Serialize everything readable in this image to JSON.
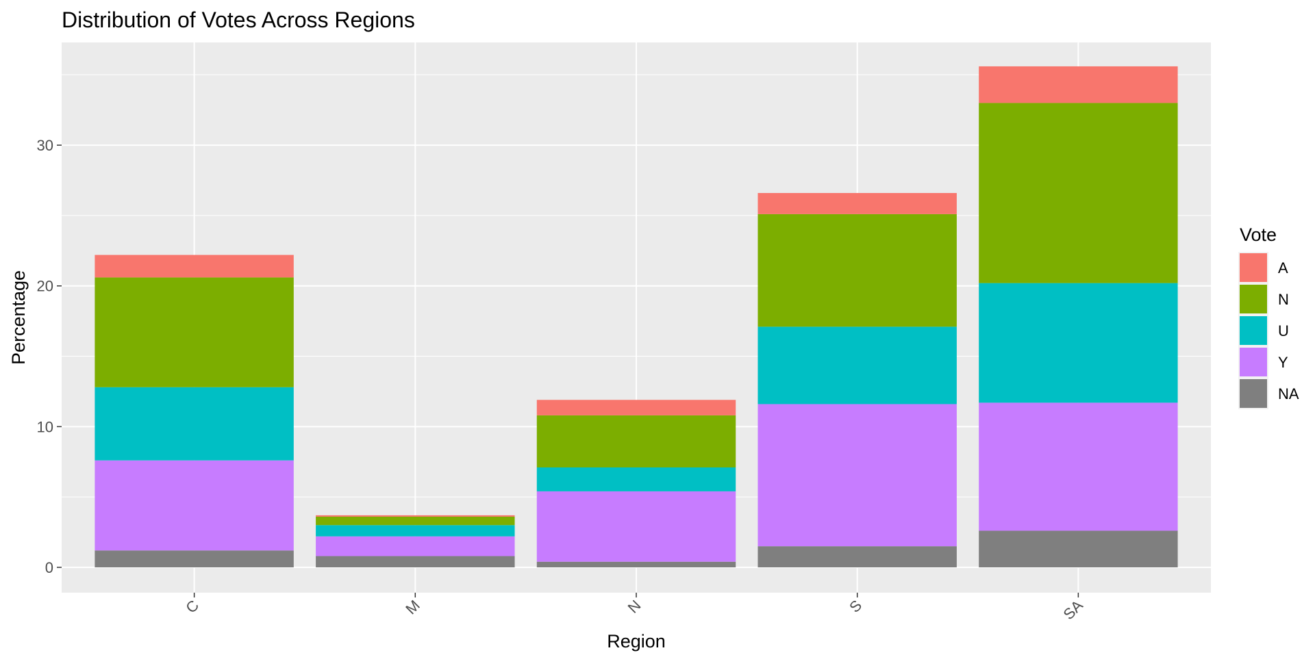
{
  "chart_data": {
    "type": "bar",
    "stacked": true,
    "title": "Distribution of Votes Across Regions",
    "xlabel": "Region",
    "ylabel": "Percentage",
    "categories": [
      "C",
      "M",
      "N",
      "S",
      "SA"
    ],
    "y_ticks": [
      0,
      10,
      20,
      30
    ],
    "ylim": [
      -1.8,
      37.3
    ],
    "grid": true,
    "legend": {
      "title": "Vote",
      "position": "right"
    },
    "series": [
      {
        "name": "NA",
        "color": "#7f7f7f",
        "values": [
          1.2,
          0.8,
          0.4,
          1.5,
          2.6
        ]
      },
      {
        "name": "Y",
        "color": "#c77cff",
        "values": [
          6.4,
          1.4,
          5.0,
          10.1,
          9.1
        ]
      },
      {
        "name": "U",
        "color": "#00bfc4",
        "values": [
          5.2,
          0.8,
          1.7,
          5.5,
          8.5
        ]
      },
      {
        "name": "N",
        "color": "#7cae00",
        "values": [
          7.8,
          0.6,
          3.7,
          8.0,
          12.8
        ]
      },
      {
        "name": "A",
        "color": "#f8766d",
        "values": [
          1.6,
          0.1,
          1.1,
          1.5,
          2.6
        ]
      }
    ],
    "legend_order": [
      "A",
      "N",
      "U",
      "Y",
      "NA"
    ]
  },
  "colors": {
    "panel_background": "#ebebeb",
    "grid_major": "#ffffff",
    "tick_text": "#4d4d4d"
  }
}
